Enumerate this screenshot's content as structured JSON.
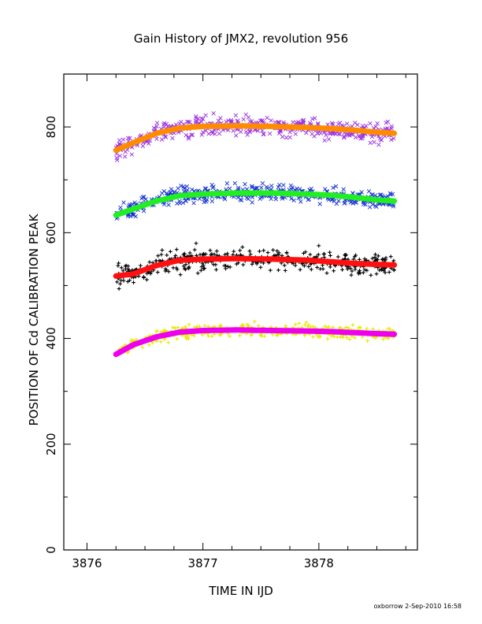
{
  "chart_data": {
    "type": "scatter",
    "title": "Gain History of JMX2, revolution 956",
    "xlabel": "TIME IN IJD",
    "ylabel": "POSITION OF Cd CALIBRATION PEAK",
    "footer": "oxborrow  2-Sep-2010 16:58",
    "xlim": [
      3875.8,
      3878.85
    ],
    "ylim": [
      0,
      900
    ],
    "x_ticks": [
      3876,
      3877,
      3878
    ],
    "y_ticks": [
      0,
      200,
      400,
      600,
      800
    ],
    "grid": false,
    "legend": "none",
    "time_range": [
      3876.25,
      3878.65
    ],
    "series": [
      {
        "marker": "x",
        "color": "#9a30e0",
        "scatter_spread": 22,
        "trend_color": "#ff8c00",
        "trend": {
          "x": [
            3876.25,
            3876.4,
            3876.6,
            3876.8,
            3877.0,
            3877.3,
            3877.6,
            3877.9,
            3878.1,
            3878.3,
            3878.5,
            3878.65
          ],
          "y": [
            756,
            770,
            788,
            798,
            801,
            802,
            801,
            799,
            797,
            794,
            790,
            788
          ]
        }
      },
      {
        "marker": "x",
        "color": "#1030d0",
        "scatter_spread": 18,
        "trend_color": "#22ee22",
        "trend": {
          "x": [
            3876.25,
            3876.4,
            3876.6,
            3876.8,
            3877.0,
            3877.3,
            3877.6,
            3877.9,
            3878.1,
            3878.3,
            3878.5,
            3878.65
          ],
          "y": [
            633,
            645,
            660,
            670,
            673,
            675,
            675,
            673,
            671,
            667,
            662,
            660
          ]
        }
      },
      {
        "marker": "+",
        "color": "#000000",
        "scatter_spread": 25,
        "trend_color": "#ff1010",
        "trend": {
          "x": [
            3876.25,
            3876.4,
            3876.6,
            3876.8,
            3877.0,
            3877.3,
            3877.6,
            3877.9,
            3878.1,
            3878.3,
            3878.5,
            3878.65
          ],
          "y": [
            518,
            522,
            538,
            548,
            550,
            551,
            550,
            548,
            545,
            542,
            540,
            539
          ]
        }
      },
      {
        "marker": "+",
        "color": "#e8e800",
        "scatter_spread": 14,
        "trend_color": "#ee00ee",
        "trend": {
          "x": [
            3876.25,
            3876.4,
            3876.6,
            3876.8,
            3877.0,
            3877.3,
            3877.6,
            3877.9,
            3878.1,
            3878.3,
            3878.5,
            3878.65
          ],
          "y": [
            370,
            388,
            403,
            412,
            415,
            416,
            415,
            414,
            413,
            411,
            409,
            408
          ]
        }
      }
    ]
  }
}
